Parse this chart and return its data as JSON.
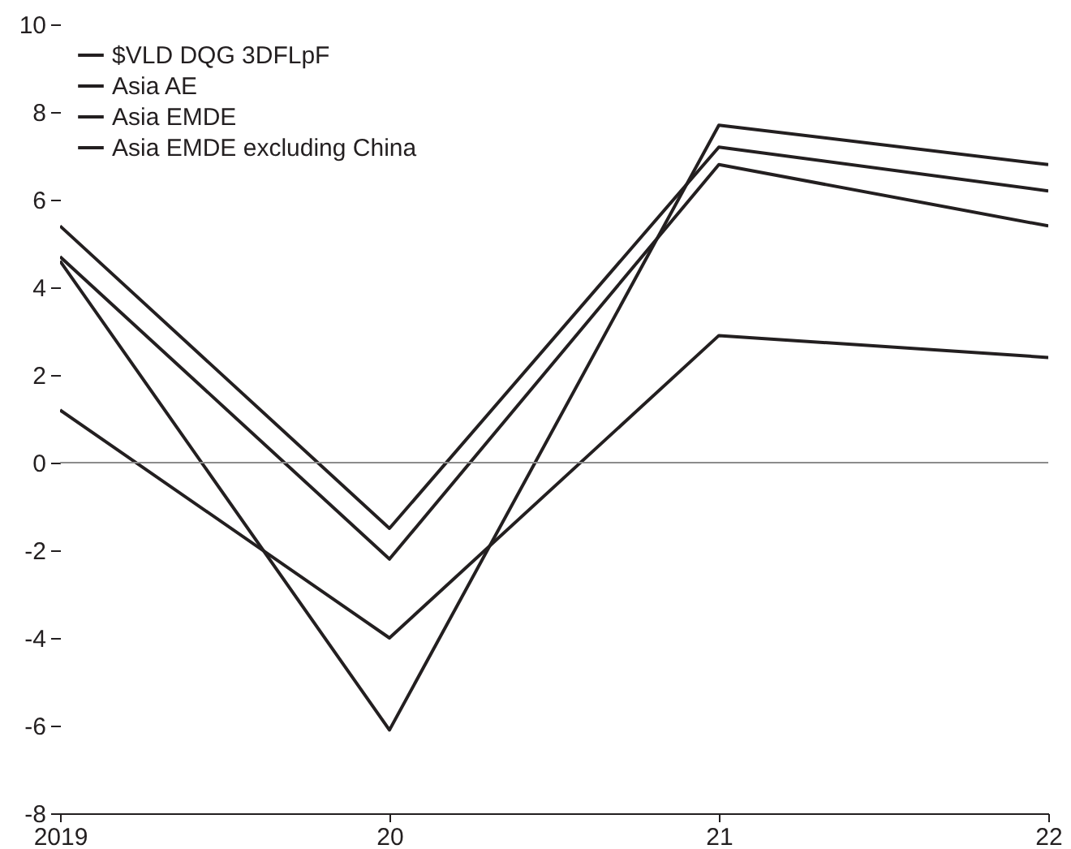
{
  "chart_data": {
    "type": "line",
    "categories": [
      "2019",
      "20",
      "21",
      "22"
    ],
    "series": [
      {
        "name": "$VLD DQG 3DFLpF",
        "color": "#231f20",
        "values": [
          4.7,
          -2.2,
          6.8,
          5.4
        ]
      },
      {
        "name": "Asia AE",
        "color": "#231f20",
        "values": [
          1.2,
          -4.0,
          2.9,
          2.4
        ]
      },
      {
        "name": "Asia EMDE",
        "color": "#231f20",
        "values": [
          5.4,
          -1.5,
          7.2,
          6.2
        ]
      },
      {
        "name": "Asia EMDE excluding China",
        "color": "#231f20",
        "values": [
          4.6,
          -6.1,
          7.7,
          6.8
        ]
      }
    ],
    "ylim": [
      -8,
      10
    ],
    "yticks": [
      -8,
      -6,
      -4,
      -2,
      0,
      2,
      4,
      6,
      8,
      10
    ],
    "ref_lines": [
      {
        "axis": "y",
        "value": 0,
        "color": "#8c8c8c"
      }
    ],
    "legend": "top left",
    "grid": false
  }
}
